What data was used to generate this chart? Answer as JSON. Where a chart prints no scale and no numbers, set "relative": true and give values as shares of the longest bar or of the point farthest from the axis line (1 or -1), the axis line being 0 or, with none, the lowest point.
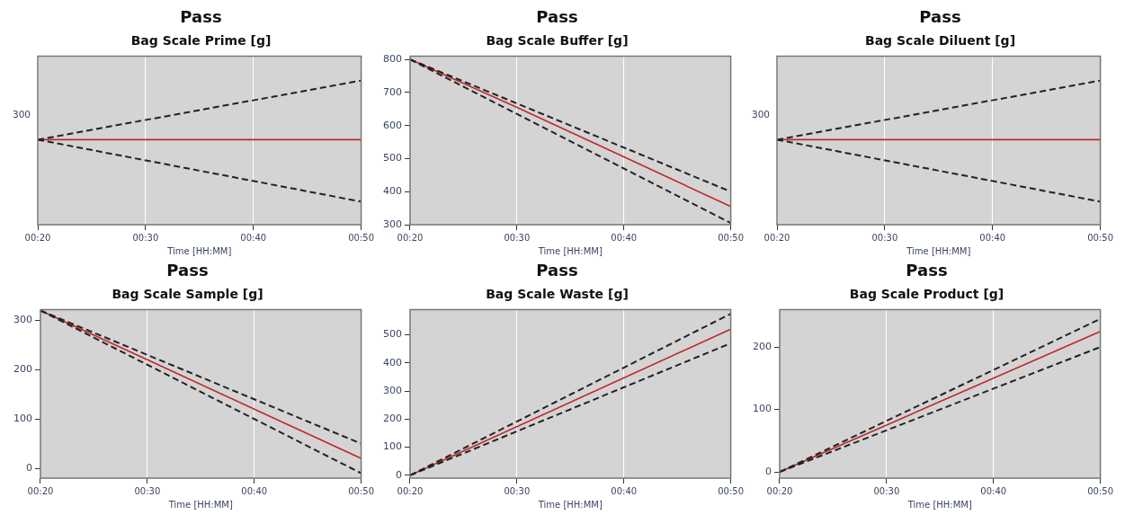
{
  "chart_data": [
    {
      "type": "line",
      "title": "Pass",
      "subtitle": "Bag Scale Prime [g]",
      "xlabel": "Time [HH:MM]",
      "relative": true,
      "annotations": [
        "300"
      ],
      "xlim": [
        0.3333,
        0.8333
      ],
      "xticks": [
        {
          "value": 0.3333,
          "label": "00:20"
        },
        {
          "value": 0.5,
          "label": "00:30"
        },
        {
          "value": 0.6667,
          "label": "00:40"
        },
        {
          "value": 0.8333,
          "label": "00:50"
        }
      ],
      "grid": "x",
      "marker": "none",
      "series": [
        {
          "color": "#222222",
          "line_style": "dashed",
          "x": [
            0.3333,
            0.8333
          ],
          "values": [
            0.59,
            1
          ]
        },
        {
          "color": "#222222",
          "line_style": "dashed",
          "x": [
            0.3333,
            0.8333
          ],
          "values": [
            0.59,
            0.16
          ]
        },
        {
          "color": "#c0282a",
          "line_style": "solid",
          "x": [
            0.3333,
            0.8333
          ],
          "values": [
            0.59,
            0.59
          ]
        }
      ]
    },
    {
      "type": "line",
      "title": "Pass",
      "subtitle": "Bag Scale Buffer [g]",
      "xlabel": "Time [HH:MM]",
      "ylim": [
        300,
        810
      ],
      "yticks": [
        300,
        400,
        500,
        600,
        700,
        800
      ],
      "xlim": [
        0.3333,
        0.8333
      ],
      "xticks": [
        {
          "value": 0.3333,
          "label": "00:20"
        },
        {
          "value": 0.5,
          "label": "00:30"
        },
        {
          "value": 0.6667,
          "label": "00:40"
        },
        {
          "value": 0.8333,
          "label": "00:50"
        }
      ],
      "grid": "x",
      "marker": "none",
      "series": [
        {
          "color": "#222222",
          "line_style": "dashed",
          "x": [
            0.3333,
            0.8333
          ],
          "values": [
            800,
            400
          ]
        },
        {
          "color": "#222222",
          "line_style": "dashed",
          "x": [
            0.3333,
            0.8333
          ],
          "values": [
            800,
            305
          ]
        },
        {
          "color": "#c0282a",
          "line_style": "solid",
          "x": [
            0.3333,
            0.5,
            0.6667,
            0.8333
          ],
          "values": [
            800,
            655,
            505,
            355
          ]
        }
      ]
    },
    {
      "type": "line",
      "title": "Pass",
      "subtitle": "Bag Scale Diluent [g]",
      "xlabel": "Time [HH:MM]",
      "relative": true,
      "annotations": [
        "300"
      ],
      "xlim": [
        0.3333,
        0.8333
      ],
      "xticks": [
        {
          "value": 0.3333,
          "label": "00:20"
        },
        {
          "value": 0.5,
          "label": "00:30"
        },
        {
          "value": 0.6667,
          "label": "00:40"
        },
        {
          "value": 0.8333,
          "label": "00:50"
        }
      ],
      "grid": "x",
      "marker": "none",
      "series": [
        {
          "color": "#222222",
          "line_style": "dashed",
          "x": [
            0.3333,
            0.8333
          ],
          "values": [
            0.59,
            1
          ]
        },
        {
          "color": "#222222",
          "line_style": "dashed",
          "x": [
            0.3333,
            0.8333
          ],
          "values": [
            0.59,
            0.16
          ]
        },
        {
          "color": "#c0282a",
          "line_style": "solid",
          "x": [
            0.3333,
            0.8333
          ],
          "values": [
            0.59,
            0.59
          ]
        }
      ]
    },
    {
      "type": "line",
      "title": "Pass",
      "subtitle": "Bag Scale Sample [g]",
      "xlabel": "Time [HH:MM]",
      "ylim": [
        -20,
        322
      ],
      "yticks": [
        0,
        100,
        200,
        300
      ],
      "xlim": [
        0.3333,
        0.8333
      ],
      "xticks": [
        {
          "value": 0.3333,
          "label": "00:20"
        },
        {
          "value": 0.5,
          "label": "00:30"
        },
        {
          "value": 0.6667,
          "label": "00:40"
        },
        {
          "value": 0.8333,
          "label": "00:50"
        }
      ],
      "grid": "x",
      "marker": "none",
      "series": [
        {
          "color": "#222222",
          "line_style": "dashed",
          "x": [
            0.3333,
            0.8333
          ],
          "values": [
            320,
            50
          ]
        },
        {
          "color": "#222222",
          "line_style": "dashed",
          "x": [
            0.3333,
            0.8333
          ],
          "values": [
            320,
            -10
          ]
        },
        {
          "color": "#c0282a",
          "line_style": "solid",
          "x": [
            0.3333,
            0.5,
            0.6667,
            0.8333
          ],
          "values": [
            320,
            220,
            120,
            20
          ]
        }
      ]
    },
    {
      "type": "line",
      "title": "Pass",
      "subtitle": "Bag Scale Waste [g]",
      "xlabel": "Time [HH:MM]",
      "ylim": [
        -10,
        590
      ],
      "yticks": [
        0,
        100,
        200,
        300,
        400,
        500
      ],
      "xlim": [
        0.3333,
        0.8333
      ],
      "xticks": [
        {
          "value": 0.3333,
          "label": "00:20"
        },
        {
          "value": 0.5,
          "label": "00:30"
        },
        {
          "value": 0.6667,
          "label": "00:40"
        },
        {
          "value": 0.8333,
          "label": "00:50"
        }
      ],
      "grid": "x",
      "marker": "none",
      "series": [
        {
          "color": "#222222",
          "line_style": "dashed",
          "x": [
            0.3333,
            0.8333
          ],
          "values": [
            0,
            575
          ]
        },
        {
          "color": "#222222",
          "line_style": "dashed",
          "x": [
            0.3333,
            0.8333
          ],
          "values": [
            0,
            470
          ]
        },
        {
          "color": "#c0282a",
          "line_style": "solid",
          "x": [
            0.3333,
            0.8333
          ],
          "values": [
            0,
            520
          ]
        }
      ]
    },
    {
      "type": "line",
      "title": "Pass",
      "subtitle": "Bag Scale Product [g]",
      "xlabel": "Time [HH:MM]",
      "ylim": [
        -10,
        260
      ],
      "yticks": [
        0,
        100,
        200
      ],
      "xlim": [
        0.3333,
        0.8333
      ],
      "xticks": [
        {
          "value": 0.3333,
          "label": "00:20"
        },
        {
          "value": 0.5,
          "label": "00:30"
        },
        {
          "value": 0.6667,
          "label": "00:40"
        },
        {
          "value": 0.8333,
          "label": "00:50"
        }
      ],
      "grid": "x",
      "marker": "none",
      "series": [
        {
          "color": "#222222",
          "line_style": "dashed",
          "x": [
            0.3333,
            0.8333
          ],
          "values": [
            0,
            245
          ]
        },
        {
          "color": "#222222",
          "line_style": "dashed",
          "x": [
            0.3333,
            0.8333
          ],
          "values": [
            0,
            200
          ]
        },
        {
          "color": "#c0282a",
          "line_style": "solid",
          "x": [
            0.3333,
            0.8333
          ],
          "values": [
            0,
            225
          ]
        }
      ]
    }
  ]
}
